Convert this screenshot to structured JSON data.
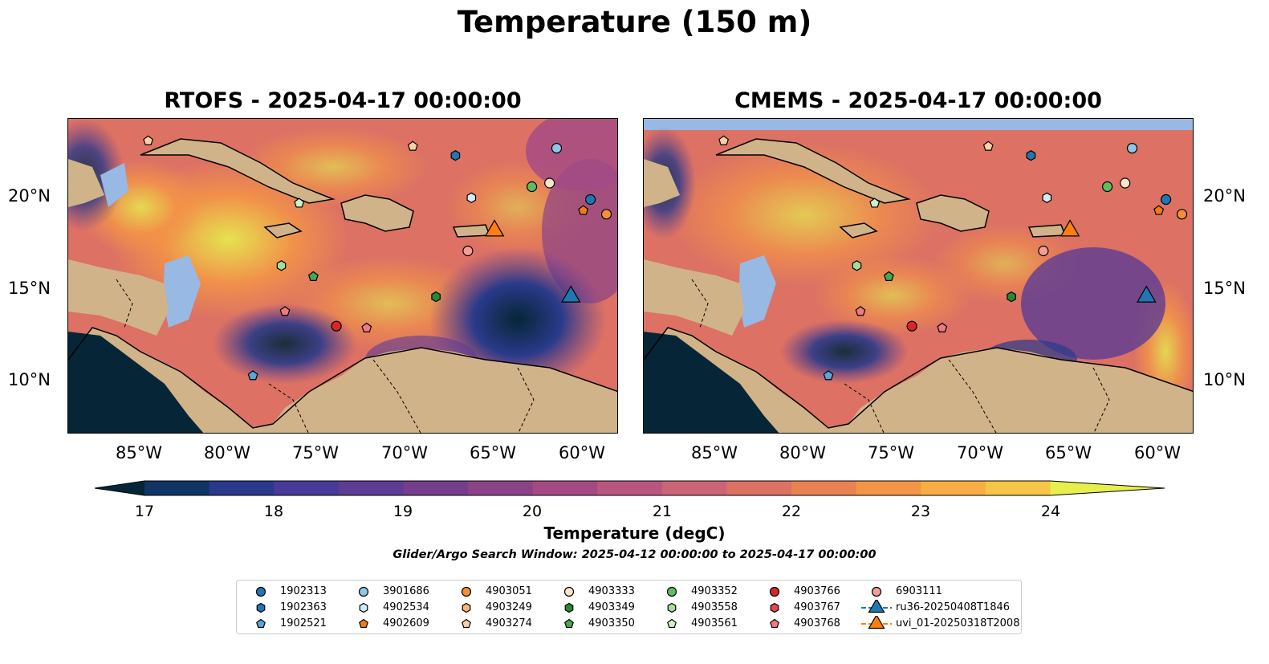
{
  "figure": {
    "suptitle": "Temperature (150 m)",
    "left_title": "RTOFS - 2025-04-17 00:00:00",
    "right_title": "CMEMS - 2025-04-17 00:00:00"
  },
  "axes": {
    "lon_ticks": [
      "85°W",
      "80°W",
      "75°W",
      "70°W",
      "65°W",
      "60°W"
    ],
    "lat_ticks": [
      "20°N",
      "15°N",
      "10°N"
    ]
  },
  "colorbar": {
    "label": "Temperature (degC)",
    "ticks": [
      "17",
      "18",
      "19",
      "20",
      "21",
      "22",
      "23",
      "24"
    ],
    "colors": [
      "#062637",
      "#0f3465",
      "#2a3a8a",
      "#473a98",
      "#5d3c94",
      "#753e8d",
      "#8b4388",
      "#a34a85",
      "#b85680",
      "#cb6477",
      "#dc7164",
      "#ea8152",
      "#f39447",
      "#f7ad44",
      "#f5c647",
      "#e6ef4e"
    ]
  },
  "search_window": "Glider/Argo Search Window: 2025-04-12 00:00:00 to 2025-04-17 00:00:00",
  "legend": [
    {
      "label": "1902313",
      "marker": "circle",
      "color": "#1f77b4"
    },
    {
      "label": "1902363",
      "marker": "hexagon",
      "color": "#1f77b4"
    },
    {
      "label": "1902521",
      "marker": "pentagon",
      "color": "#5aa6d8"
    },
    {
      "label": "3901686",
      "marker": "circle",
      "color": "#8fc5e8"
    },
    {
      "label": "4902534",
      "marker": "hexagon",
      "color": "#d3ebf8"
    },
    {
      "label": "4902609",
      "marker": "pentagon",
      "color": "#f07c12"
    },
    {
      "label": "4903051",
      "marker": "circle",
      "color": "#f58f36"
    },
    {
      "label": "4903249",
      "marker": "hexagon",
      "color": "#f9b577"
    },
    {
      "label": "4903274",
      "marker": "pentagon",
      "color": "#fbd0a8"
    },
    {
      "label": "4903333",
      "marker": "circle",
      "color": "#fce3cd"
    },
    {
      "label": "4903349",
      "marker": "hexagon",
      "color": "#238b2e"
    },
    {
      "label": "4903350",
      "marker": "pentagon",
      "color": "#45a84a"
    },
    {
      "label": "4903352",
      "marker": "circle",
      "color": "#5fbd5e"
    },
    {
      "label": "4903558",
      "marker": "hexagon",
      "color": "#a3de98"
    },
    {
      "label": "4903561",
      "marker": "pentagon",
      "color": "#cdf1c5"
    },
    {
      "label": "4903766",
      "marker": "circle",
      "color": "#d62728"
    },
    {
      "label": "4903767",
      "marker": "hexagon",
      "color": "#e24a4e"
    },
    {
      "label": "4903768",
      "marker": "pentagon",
      "color": "#ee7b7f"
    },
    {
      "label": "6903111",
      "marker": "circle",
      "color": "#f49c98"
    },
    {
      "label": "ru36-20250408T1846",
      "marker": "triangle",
      "color": "#1f77b4"
    },
    {
      "label": "uvi_01-20250318T2008",
      "marker": "triangle",
      "color": "#ff7f0e"
    }
  ],
  "map_extent": {
    "lon": [
      -89,
      -58
    ],
    "lat": [
      7,
      24.2
    ]
  },
  "floats": [
    {
      "id": "4903274",
      "lon": -84.5,
      "lat": 23.0
    },
    {
      "id": "4903561",
      "lon": -76.0,
      "lat": 19.6
    },
    {
      "id": "4903558",
      "lon": -77.0,
      "lat": 16.2
    },
    {
      "id": "4903350",
      "lon": -75.2,
      "lat": 15.6
    },
    {
      "id": "4903768",
      "lon": -76.8,
      "lat": 13.7
    },
    {
      "id": "4903766",
      "lon": -73.9,
      "lat": 12.9
    },
    {
      "id": "4903768",
      "lon": -72.2,
      "lat": 12.8
    },
    {
      "id": "1902521",
      "lon": -78.6,
      "lat": 10.2
    },
    {
      "id": "4903274",
      "lon": -69.6,
      "lat": 22.7
    },
    {
      "id": "1902363",
      "lon": -67.2,
      "lat": 22.2
    },
    {
      "id": "3901686",
      "lon": -61.5,
      "lat": 22.6
    },
    {
      "id": "4902534",
      "lon": -66.3,
      "lat": 19.9
    },
    {
      "id": "4903352",
      "lon": -62.9,
      "lat": 20.5
    },
    {
      "id": "4903333",
      "lon": -61.9,
      "lat": 20.7
    },
    {
      "id": "1902313",
      "lon": -59.6,
      "lat": 19.8
    },
    {
      "id": "4902609",
      "lon": -60.0,
      "lat": 19.2
    },
    {
      "id": "4903051",
      "lon": -58.7,
      "lat": 19.0
    },
    {
      "id": "6903111",
      "lon": -66.5,
      "lat": 17.0
    },
    {
      "id": "4903349",
      "lon": -68.3,
      "lat": 14.5
    }
  ],
  "gliders": [
    {
      "id": "uvi_01-20250318T2008",
      "lon": -65.0,
      "lat": 18.1
    },
    {
      "id": "ru36-20250408T1846",
      "lon": -60.7,
      "lat": 14.5
    }
  ]
}
